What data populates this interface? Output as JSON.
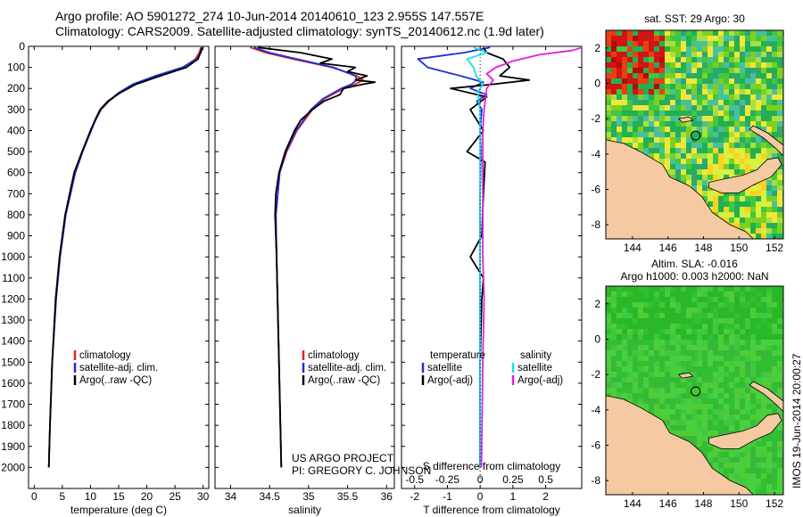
{
  "header": {
    "line1": "Argo profile: AO 5901272_274 10-Jun-2014 20140610_123 2.955S 147.557E",
    "line2": "Climatology: CARS2009. Satellite-adjusted climatology: synTS_20140612.nc (1.9d later)"
  },
  "colors": {
    "climatology": "#e8202a",
    "satellite": "#1f2fd8",
    "argo": "#000000",
    "salinity_sat": "#16e0f0",
    "salinity_argo": "#e020e0",
    "land": "#f5c9a1"
  },
  "credit": {
    "line1": "US ARGO PROJECT",
    "line2": "PI: GREGORY C. JOHNSON"
  },
  "stamp": "IMOS 19-Jun-2014 20:00:27",
  "chart_data": [
    {
      "name": "temperature-profile",
      "type": "line",
      "xlabel": "temperature (deg C)",
      "ylabel": "",
      "xlim": [
        -1,
        31
      ],
      "ylim": [
        2100,
        0
      ],
      "xticks": [
        0,
        5,
        10,
        15,
        20,
        25,
        30
      ],
      "yticks": [
        0,
        100,
        200,
        300,
        400,
        500,
        600,
        700,
        800,
        900,
        1000,
        1100,
        1200,
        1300,
        1400,
        1500,
        1600,
        1700,
        1800,
        1900,
        2000
      ],
      "legend": [
        "climatology",
        "satellite-adj. clim.",
        "Argo(..raw -QC)"
      ],
      "series": [
        {
          "name": "climatology",
          "depth": [
            5,
            30,
            60,
            100,
            140,
            180,
            220,
            260,
            300,
            350,
            400,
            500,
            600,
            800,
            1000,
            1200,
            1500,
            1800,
            2000
          ],
          "values": [
            29.6,
            29.3,
            28.6,
            26.5,
            21.5,
            17.8,
            15.2,
            13.3,
            11.9,
            10.9,
            10.1,
            8.6,
            7.3,
            5.6,
            4.6,
            3.9,
            3.2,
            2.8,
            2.6
          ]
        },
        {
          "name": "satellite-adj. clim.",
          "depth": [
            5,
            30,
            60,
            100,
            140,
            180,
            220,
            260,
            300,
            350,
            400,
            500,
            600,
            800,
            1000,
            1200,
            1500,
            1800,
            2000
          ],
          "values": [
            29.9,
            29.6,
            28.9,
            26.3,
            21.6,
            17.5,
            15.0,
            13.2,
            11.8,
            10.9,
            10.1,
            8.6,
            7.3,
            5.6,
            4.6,
            3.9,
            3.2,
            2.8,
            2.6
          ]
        },
        {
          "name": "Argo(..raw -QC)",
          "depth": [
            5,
            30,
            60,
            100,
            140,
            180,
            220,
            260,
            300,
            350,
            400,
            500,
            600,
            800,
            1000,
            1200,
            1500,
            1800,
            2000
          ],
          "values": [
            29.8,
            29.5,
            29.1,
            27.0,
            22.4,
            18.1,
            15.3,
            13.1,
            11.7,
            10.8,
            10.0,
            8.5,
            7.1,
            5.5,
            4.5,
            3.8,
            3.2,
            2.8,
            2.6
          ]
        }
      ]
    },
    {
      "name": "salinity-profile",
      "type": "line",
      "xlabel": "salinity",
      "ylabel": "",
      "xlim": [
        33.8,
        36.1
      ],
      "ylim": [
        2100,
        0
      ],
      "xticks": [
        34,
        34.5,
        35,
        35.5,
        36
      ],
      "legend": [
        "climatology",
        "satellite-adj. clim.",
        "Argo(..raw -QC)"
      ],
      "series": [
        {
          "name": "climatology",
          "depth": [
            5,
            30,
            60,
            100,
            140,
            160,
            180,
            200,
            250,
            300,
            400,
            500,
            600,
            800,
            1000,
            1500,
            2000
          ],
          "values": [
            34.25,
            34.45,
            34.8,
            35.3,
            35.62,
            35.7,
            35.6,
            35.45,
            35.2,
            35.05,
            34.85,
            34.72,
            34.63,
            34.58,
            34.59,
            34.62,
            34.65
          ]
        },
        {
          "name": "satellite-adj. clim.",
          "depth": [
            5,
            30,
            60,
            100,
            140,
            160,
            180,
            200,
            250,
            300,
            400,
            500,
            600,
            800,
            1000,
            1500,
            2000
          ],
          "values": [
            34.3,
            34.5,
            34.85,
            35.32,
            35.6,
            35.62,
            35.55,
            35.42,
            35.18,
            35.03,
            34.84,
            34.71,
            34.63,
            34.58,
            34.59,
            34.62,
            34.65
          ]
        },
        {
          "name": "Argo(..raw -QC)",
          "depth": [
            5,
            30,
            60,
            80,
            100,
            120,
            140,
            160,
            170,
            180,
            200,
            230,
            260,
            300,
            350,
            400,
            500,
            600,
            700,
            800,
            1000,
            1500,
            2000
          ],
          "values": [
            34.35,
            34.9,
            35.3,
            35.15,
            35.6,
            35.5,
            35.75,
            35.6,
            35.85,
            35.7,
            35.45,
            35.4,
            35.2,
            35.05,
            34.9,
            34.82,
            34.7,
            34.62,
            34.58,
            34.57,
            34.59,
            34.62,
            34.65
          ]
        }
      ]
    },
    {
      "name": "difference-profile",
      "type": "line",
      "xlabel": "T difference from climatology",
      "x2label": "S difference from climatology",
      "xlim": [
        -2.4,
        3.1
      ],
      "x2lim": [
        -0.6,
        0.775
      ],
      "ylim": [
        2100,
        0
      ],
      "xticks": [
        -2,
        -1,
        0,
        1,
        2
      ],
      "x2ticks": [
        "-0.5",
        "-0.25",
        "0",
        "0.25",
        "0.5"
      ],
      "legend_groups": {
        "temperature": "temperature",
        "salinity": "salinity"
      },
      "legend": [
        "satellite",
        "Argo(-adj)",
        "satellite",
        "Argo(-adj)"
      ],
      "series": [
        {
          "name": "T satellite",
          "depth": [
            5,
            30,
            60,
            100,
            140,
            170,
            200,
            230,
            260,
            300,
            400,
            500,
            700,
            1000,
            1500,
            2000
          ],
          "values": [
            0.3,
            -0.5,
            -1.9,
            -1.6,
            -0.6,
            0.1,
            -0.3,
            0.2,
            -0.1,
            0.05,
            0.0,
            0.02,
            0.0,
            0.0,
            0.0,
            0.0
          ]
        },
        {
          "name": "T Argo(-adj)",
          "depth": [
            5,
            30,
            60,
            100,
            140,
            160,
            180,
            200,
            240,
            300,
            400,
            500,
            550,
            700,
            900,
            1000,
            1100,
            1200,
            1500,
            1800,
            2000
          ],
          "values": [
            0.1,
            0.2,
            0.7,
            0.9,
            0.6,
            1.5,
            0.4,
            -0.9,
            0.2,
            -0.3,
            0.1,
            -0.4,
            0.15,
            0.1,
            0.05,
            -0.3,
            0.1,
            0.05,
            0.0,
            0.0,
            0.0
          ]
        },
        {
          "name": "S satellite",
          "depth": [
            5,
            30,
            60,
            100,
            140,
            180,
            220,
            300,
            400,
            500,
            700,
            1000,
            1500,
            2000
          ],
          "values": [
            -0.05,
            0.05,
            -0.1,
            -0.05,
            -0.03,
            0.02,
            -0.02,
            0.0,
            0.0,
            0.0,
            0.0,
            0.0,
            0.0,
            0.0
          ]
        },
        {
          "name": "S Argo(-adj)",
          "depth": [
            5,
            20,
            40,
            70,
            100,
            130,
            160,
            200,
            300,
            400,
            600,
            800,
            1000,
            1200,
            1500,
            2000
          ],
          "values": [
            0.78,
            0.7,
            0.45,
            0.25,
            0.12,
            0.05,
            0.1,
            0.05,
            0.03,
            0.02,
            0.02,
            0.02,
            0.02,
            0.03,
            0.02,
            0.01
          ]
        }
      ]
    },
    {
      "name": "sst-map",
      "type": "heatmap",
      "title": "sat. SST: 29 Argo: 30",
      "xlim": [
        142.5,
        152.5
      ],
      "ylim": [
        -8.8,
        3
      ],
      "xticks": [
        144,
        146,
        148,
        150,
        152
      ],
      "yticks": [
        2,
        0,
        -2,
        -4,
        -6,
        -8
      ],
      "argo_position": [
        147.557,
        -2.955
      ]
    },
    {
      "name": "sla-map",
      "type": "heatmap",
      "title": "Altim. SLA: -0.016",
      "subtitle": "Argo h1000: 0.003 h2000: NaN",
      "xlim": [
        142.5,
        152.5
      ],
      "ylim": [
        -8.8,
        3
      ],
      "xticks": [
        144,
        146,
        148,
        150,
        152
      ],
      "yticks": [
        2,
        0,
        -2,
        -4,
        -6,
        -8
      ],
      "argo_position": [
        147.557,
        -2.955
      ]
    }
  ]
}
